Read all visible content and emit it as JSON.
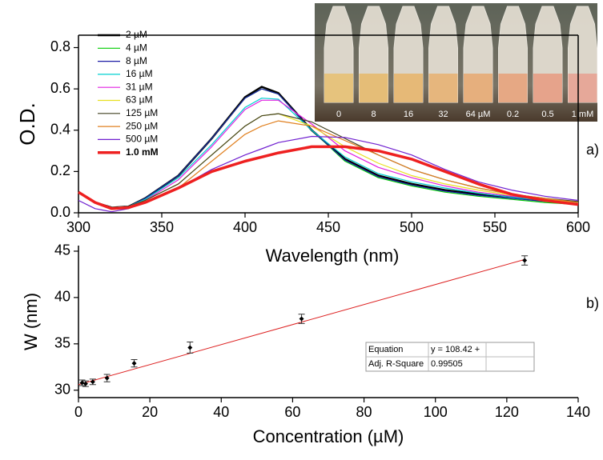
{
  "photo": {
    "labels": [
      "0",
      "8",
      "16",
      "32",
      "64 µM",
      "0.2",
      "0.5",
      "1 mM"
    ]
  },
  "chart_data": [
    {
      "type": "line",
      "xlabel": "Wavelength (nm)",
      "ylabel": "O.D.",
      "annotation": "a)",
      "legend": "upper left",
      "xlim": [
        300,
        600
      ],
      "ylim": [
        0,
        0.86
      ],
      "xticks": [
        300,
        350,
        400,
        450,
        500,
        550,
        600
      ],
      "yticks": [
        {
          "value": 0,
          "label": "0.0"
        },
        0.2,
        0.4,
        0.6,
        0.8
      ],
      "x": [
        300,
        310,
        320,
        330,
        340,
        360,
        380,
        400,
        410,
        420,
        440,
        460,
        480,
        500,
        520,
        540,
        560,
        580,
        600
      ],
      "series": [
        {
          "name": "2 µM",
          "color": "#000000",
          "width": 2.5,
          "values": [
            0.1,
            0.05,
            0.025,
            0.03,
            0.07,
            0.18,
            0.36,
            0.56,
            0.61,
            0.58,
            0.4,
            0.26,
            0.18,
            0.14,
            0.11,
            0.09,
            0.075,
            0.06,
            0.045
          ]
        },
        {
          "name": "4 µM",
          "color": "#00cc00",
          "width": 1.2,
          "values": [
            0.1,
            0.05,
            0.025,
            0.03,
            0.07,
            0.18,
            0.36,
            0.555,
            0.6,
            0.575,
            0.4,
            0.25,
            0.17,
            0.13,
            0.1,
            0.08,
            0.065,
            0.05,
            0.04
          ]
        },
        {
          "name": "8 µM",
          "color": "#1a1aa6",
          "width": 1.2,
          "values": [
            0.1,
            0.05,
            0.025,
            0.03,
            0.07,
            0.18,
            0.36,
            0.555,
            0.6,
            0.575,
            0.4,
            0.255,
            0.175,
            0.135,
            0.105,
            0.085,
            0.07,
            0.055,
            0.045
          ]
        },
        {
          "name": "16 µM",
          "color": "#00d0d0",
          "width": 1.2,
          "values": [
            0.1,
            0.05,
            0.025,
            0.03,
            0.065,
            0.17,
            0.33,
            0.51,
            0.555,
            0.55,
            0.4,
            0.27,
            0.19,
            0.15,
            0.12,
            0.095,
            0.075,
            0.06,
            0.05
          ]
        },
        {
          "name": "31 µM",
          "color": "#e020e0",
          "width": 1.2,
          "values": [
            0.1,
            0.05,
            0.025,
            0.03,
            0.06,
            0.16,
            0.32,
            0.5,
            0.545,
            0.545,
            0.43,
            0.3,
            0.22,
            0.17,
            0.13,
            0.1,
            0.08,
            0.065,
            0.05
          ]
        },
        {
          "name": "63 µM",
          "color": "#e8e020",
          "width": 1.2,
          "values": [
            0.1,
            0.05,
            0.025,
            0.03,
            0.06,
            0.14,
            0.28,
            0.42,
            0.47,
            0.48,
            0.42,
            0.32,
            0.24,
            0.18,
            0.14,
            0.11,
            0.085,
            0.065,
            0.05
          ]
        },
        {
          "name": "125 µM",
          "color": "#404020",
          "width": 1.2,
          "values": [
            0.1,
            0.05,
            0.02,
            0.03,
            0.06,
            0.14,
            0.28,
            0.42,
            0.47,
            0.48,
            0.44,
            0.36,
            0.28,
            0.21,
            0.16,
            0.12,
            0.09,
            0.07,
            0.055
          ]
        },
        {
          "name": "250 µM",
          "color": "#e08020",
          "width": 1.2,
          "values": [
            0.1,
            0.05,
            0.02,
            0.025,
            0.05,
            0.12,
            0.25,
            0.38,
            0.42,
            0.445,
            0.42,
            0.35,
            0.28,
            0.21,
            0.16,
            0.12,
            0.09,
            0.07,
            0.05
          ]
        },
        {
          "name": "500 µM",
          "color": "#7020d0",
          "width": 1.2,
          "values": [
            0.06,
            0.02,
            0.005,
            0.02,
            0.05,
            0.12,
            0.21,
            0.28,
            0.31,
            0.34,
            0.37,
            0.365,
            0.33,
            0.28,
            0.21,
            0.15,
            0.11,
            0.08,
            0.06
          ]
        },
        {
          "name": "1.0 mM",
          "color": "#ee2020",
          "width": 3.5,
          "values": [
            0.1,
            0.05,
            0.02,
            0.025,
            0.05,
            0.12,
            0.2,
            0.25,
            0.27,
            0.29,
            0.32,
            0.32,
            0.3,
            0.26,
            0.2,
            0.14,
            0.09,
            0.06,
            0.04
          ]
        }
      ]
    },
    {
      "type": "scatter",
      "xlabel": "Concentration (µM)",
      "ylabel": "W (nm)",
      "annotation": "b)",
      "xlim": [
        0,
        140
      ],
      "ylim": [
        29.2,
        45.6
      ],
      "xticks": [
        0,
        20,
        40,
        60,
        80,
        100,
        120,
        140
      ],
      "yticks": [
        30,
        35,
        40,
        45
      ],
      "color": "#000000",
      "x": [
        1,
        2,
        4,
        8,
        15.6,
        31.25,
        62.5,
        125
      ],
      "values": [
        30.8,
        30.7,
        30.9,
        31.3,
        32.9,
        34.6,
        37.7,
        44.0
      ],
      "errors": [
        0.3,
        0.3,
        0.3,
        0.4,
        0.4,
        0.6,
        0.5,
        0.5
      ],
      "fit": {
        "color": "#dd2020",
        "x": [
          0,
          125
        ],
        "values": [
          30.6,
          44.1
        ]
      },
      "table": [
        [
          "Equation",
          "y = 108.42 +"
        ],
        [
          "Adj. R-Square",
          "0.99505"
        ]
      ]
    }
  ]
}
